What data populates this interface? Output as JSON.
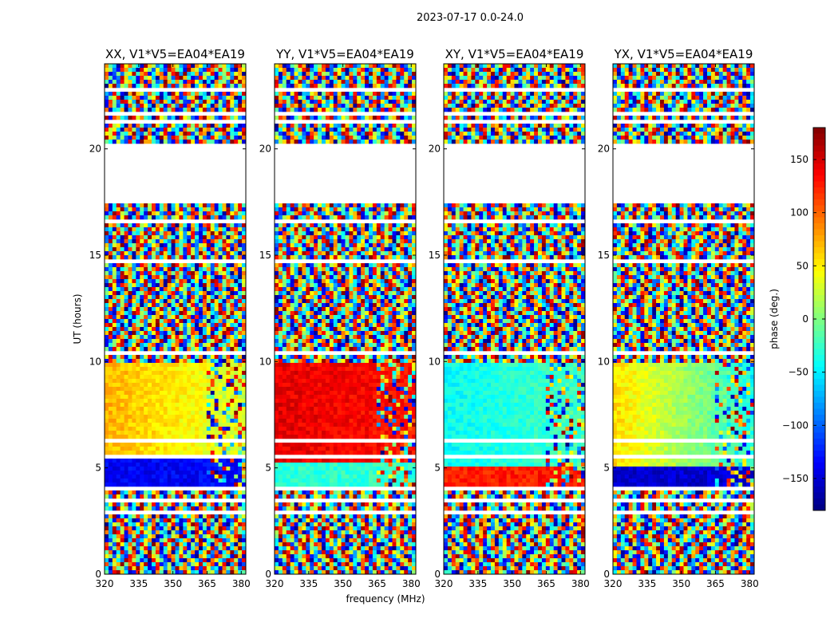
{
  "suptitle": "2023-07-17 0.0-24.0",
  "chart_data": {
    "type": "heatmap",
    "panels": [
      {
        "title": "XX, V1*V5=EA04*EA19",
        "pattern": "xx"
      },
      {
        "title": "YY, V1*V5=EA04*EA19",
        "pattern": "yy"
      },
      {
        "title": "XY, V1*V5=EA04*EA19",
        "pattern": "xy"
      },
      {
        "title": "YX, V1*V5=EA04*EA19",
        "pattern": "yx"
      }
    ],
    "x_axis": {
      "label": "frequency (MHz)",
      "range": [
        320,
        382
      ],
      "ticks": [
        320,
        335,
        350,
        365,
        380
      ]
    },
    "y_axis": {
      "label": "UT (hours)",
      "range": [
        0,
        24
      ],
      "ticks": [
        0,
        5,
        10,
        15,
        20
      ]
    },
    "colorbar": {
      "label": "phase (deg.)",
      "range": [
        -180,
        180
      ],
      "ticks": [
        150,
        100,
        50,
        0,
        -50,
        -100,
        -150
      ],
      "colormap": "jet"
    },
    "data_gap_ut": [
      20.2,
      17.5
    ],
    "coherent_ut": [
      4.2,
      9.9
    ]
  }
}
